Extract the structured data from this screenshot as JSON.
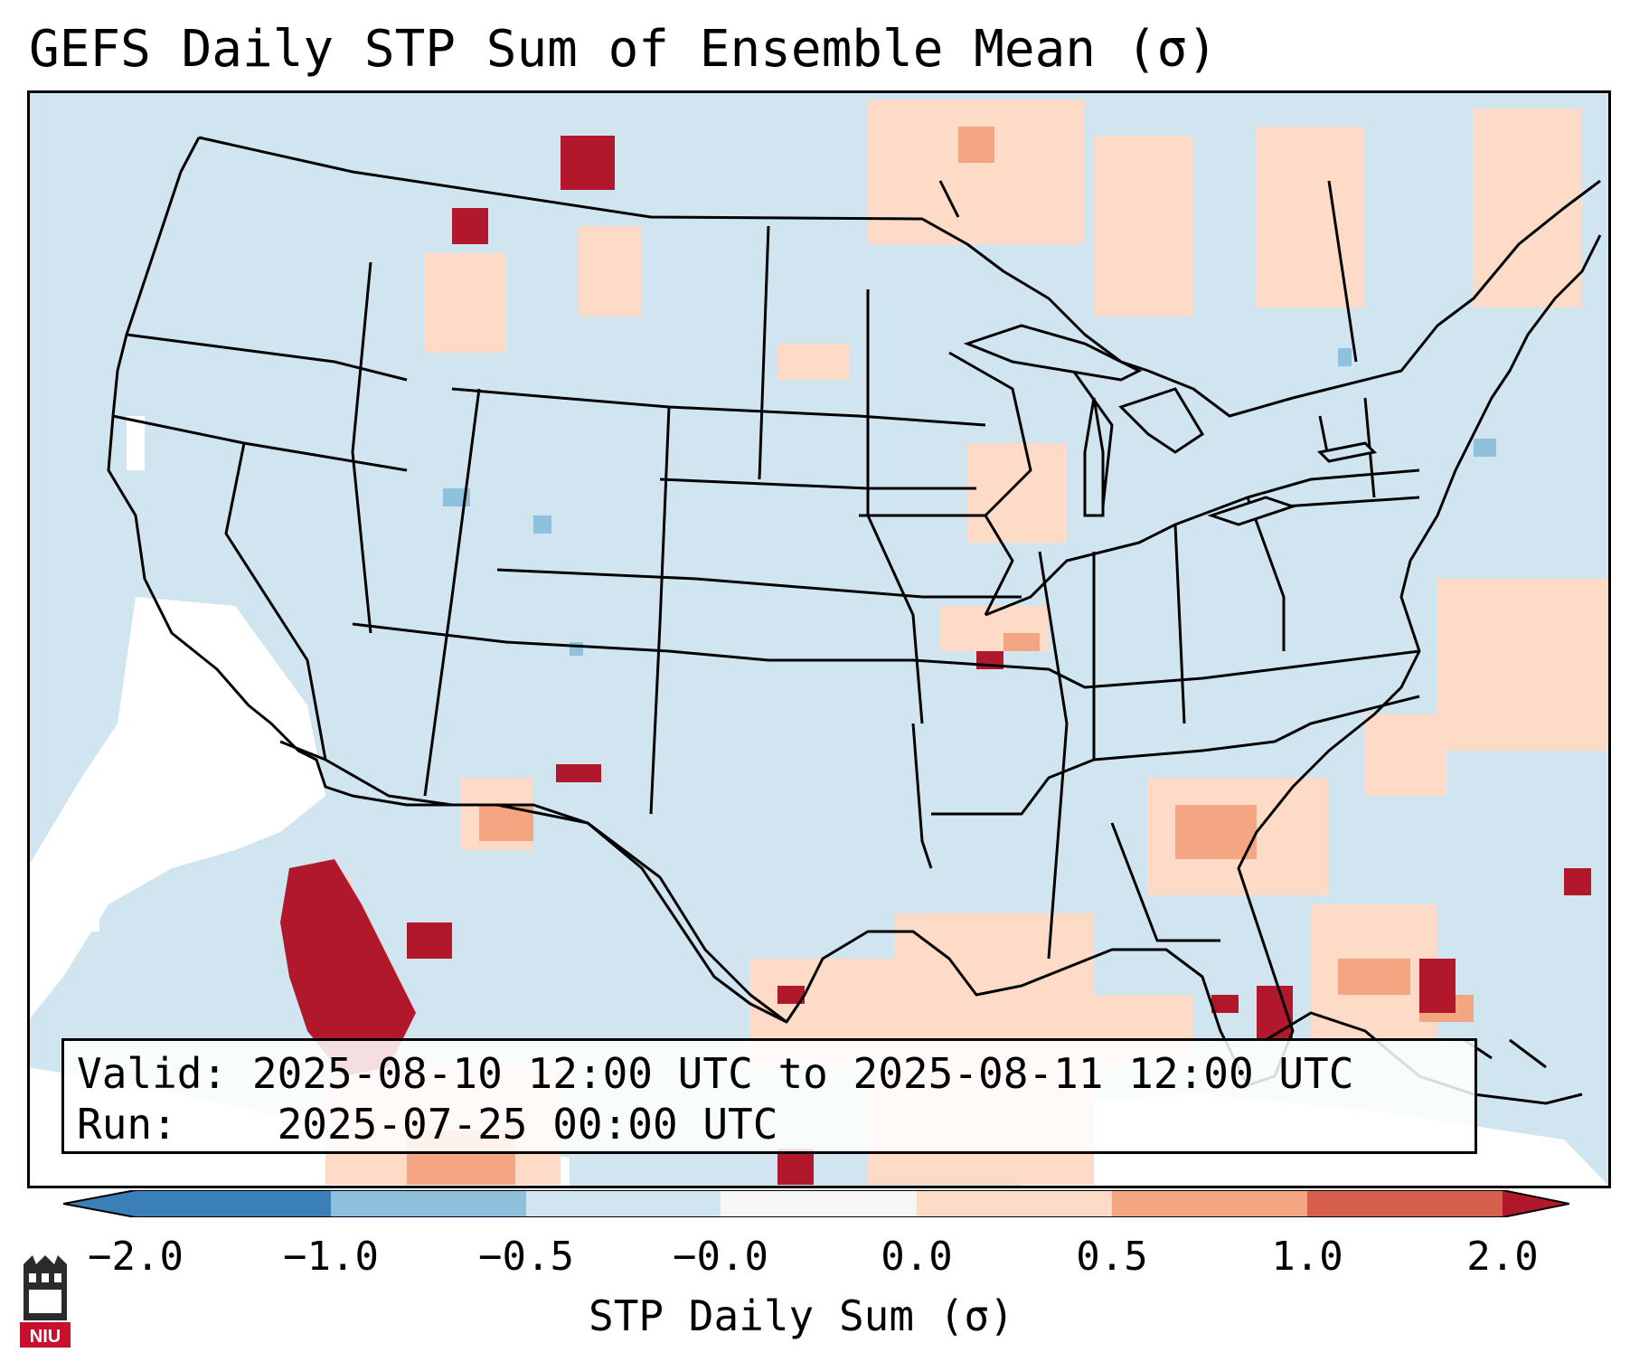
{
  "title": "GEFS Daily STP Sum of Ensemble Mean (σ)",
  "info": {
    "valid_label": "Valid:",
    "valid_value": "2025-08-10 12:00 UTC to 2025-08-11 12:00 UTC",
    "run_label": "Run:",
    "run_value": "2025-07-25 00:00 UTC"
  },
  "colorbar": {
    "label": "STP Daily Sum (σ)",
    "ticks": [
      "−2.0",
      "−1.0",
      "−0.5",
      "−0.0",
      "0.0",
      "0.5",
      "1.0",
      "2.0"
    ],
    "colors": [
      "#3a7fb8",
      "#8fc1dd",
      "#d1e5f0",
      "#f7f7f7",
      "#fddbc7",
      "#f4a582",
      "#d6604d",
      "#b2182b"
    ]
  },
  "map": {
    "background_color": "#d1e5f0",
    "region": "Contiguous United States and surrounding areas"
  },
  "logo": {
    "text": "NIU"
  }
}
